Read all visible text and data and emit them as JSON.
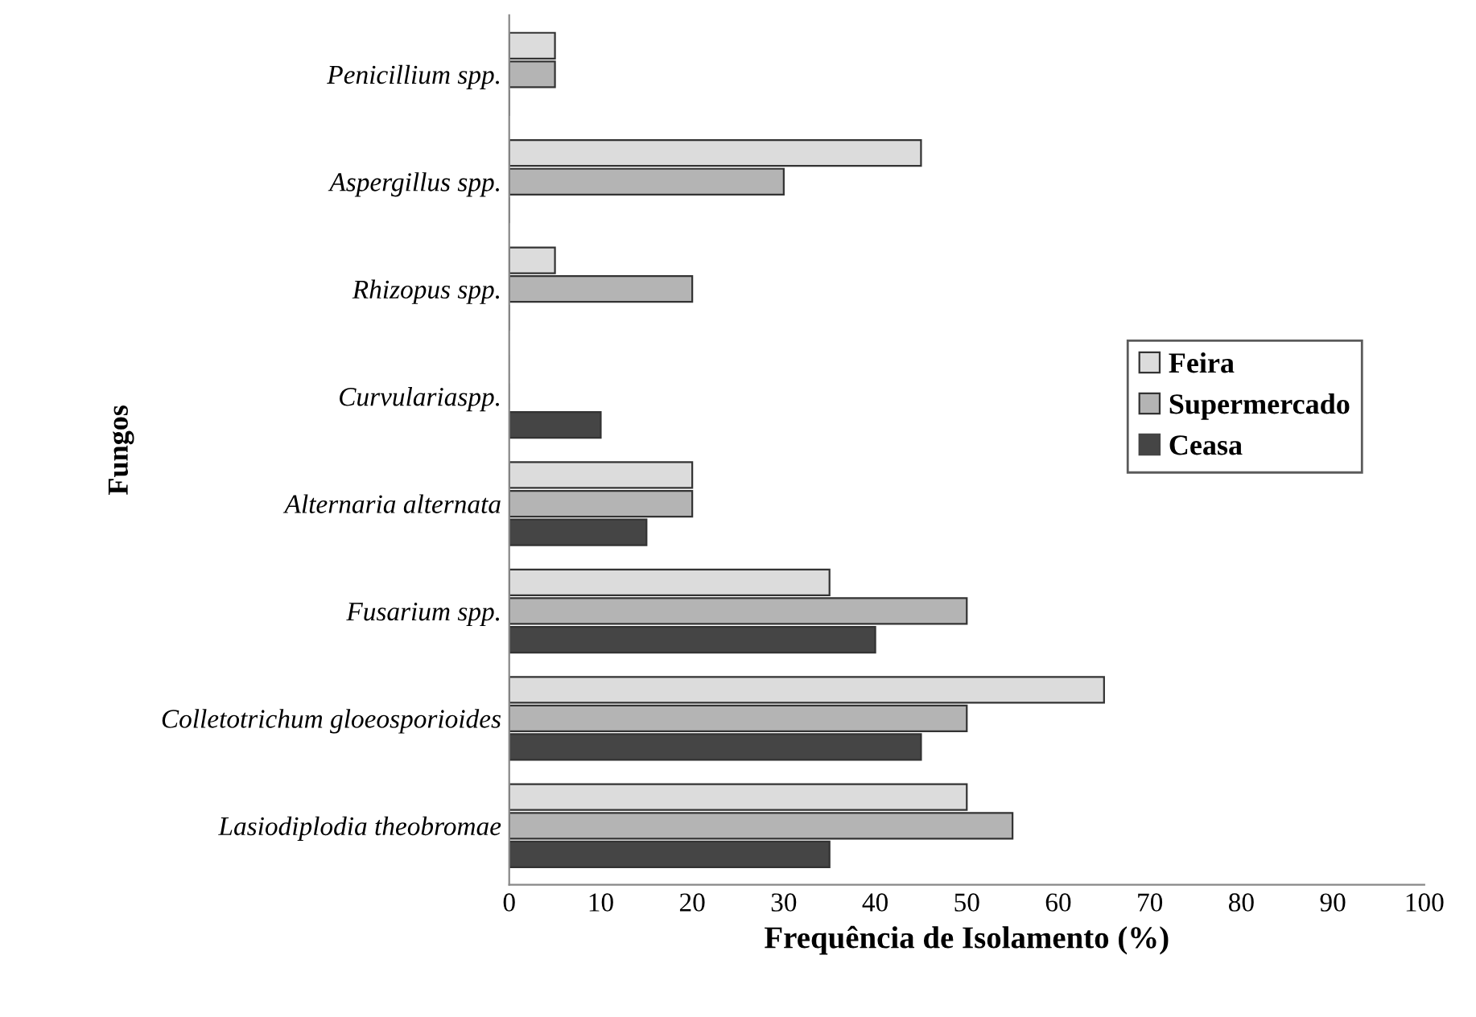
{
  "chart_data": {
    "type": "bar",
    "orientation": "horizontal",
    "xlabel": "Frequência de Isolamento (%)",
    "ylabel": "Fungos",
    "categories": [
      "Penicillium spp.",
      "Aspergillus spp.",
      "Rhizopus spp.",
      "Curvulariaspp.",
      "Alternaria alternata",
      "Fusarium spp.",
      "Colletotrichum gloeosporioides",
      "Lasiodiplodia theobromae"
    ],
    "series": [
      {
        "name": "Feira",
        "color": "#dcdcdc",
        "values": [
          5,
          45,
          5,
          0,
          20,
          35,
          65,
          50
        ]
      },
      {
        "name": "Supermercado",
        "color": "#b4b4b4",
        "values": [
          5,
          30,
          20,
          0,
          20,
          50,
          50,
          55
        ]
      },
      {
        "name": "Ceasa",
        "color": "#454545",
        "values": [
          0,
          0,
          0,
          10,
          15,
          40,
          45,
          35
        ]
      }
    ],
    "xlim": [
      0,
      100
    ],
    "xticks": [
      0,
      10,
      20,
      30,
      40,
      50,
      60,
      70,
      80,
      90,
      100
    ],
    "grid": false,
    "legend": "right"
  }
}
